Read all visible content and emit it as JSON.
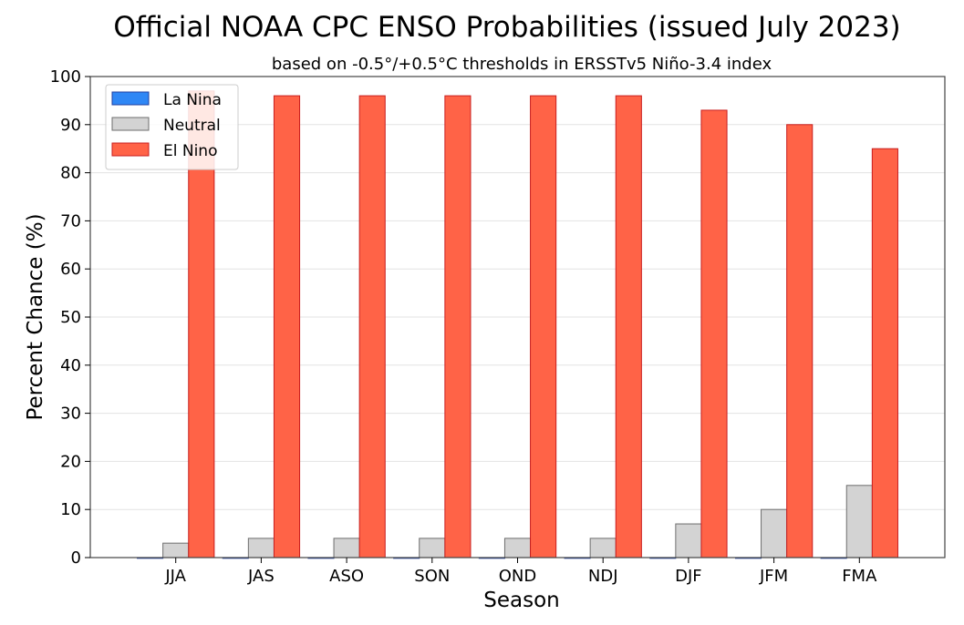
{
  "chart_data": {
    "type": "bar",
    "title": "Official NOAA CPC ENSO Probabilities (issued July 2023)",
    "subtitle": "based on -0.5°/+0.5°C thresholds in ERSSTv5 Niño-3.4 index",
    "xlabel": "Season",
    "ylabel": "Percent Chance (%)",
    "ylim": [
      0,
      100
    ],
    "yticks": [
      0,
      10,
      20,
      30,
      40,
      50,
      60,
      70,
      80,
      90,
      100
    ],
    "grid": "horizontal",
    "legend_position": "top-left",
    "categories": [
      "JJA",
      "JAS",
      "ASO",
      "SON",
      "OND",
      "NDJ",
      "DJF",
      "JFM",
      "FMA"
    ],
    "series": [
      {
        "name": "La Nina",
        "color": "#2f87f5",
        "edge": "#1f3fa0",
        "values": [
          0,
          0,
          0,
          0,
          0,
          0,
          0,
          0,
          0
        ]
      },
      {
        "name": "Neutral",
        "color": "#d3d3d3",
        "edge": "#6e6e6e",
        "values": [
          3,
          4,
          4,
          4,
          4,
          4,
          7,
          10,
          15
        ]
      },
      {
        "name": "El Nino",
        "color": "#ff6347",
        "edge": "#c81e1e",
        "values": [
          97,
          96,
          96,
          96,
          96,
          96,
          93,
          90,
          85
        ]
      }
    ]
  }
}
